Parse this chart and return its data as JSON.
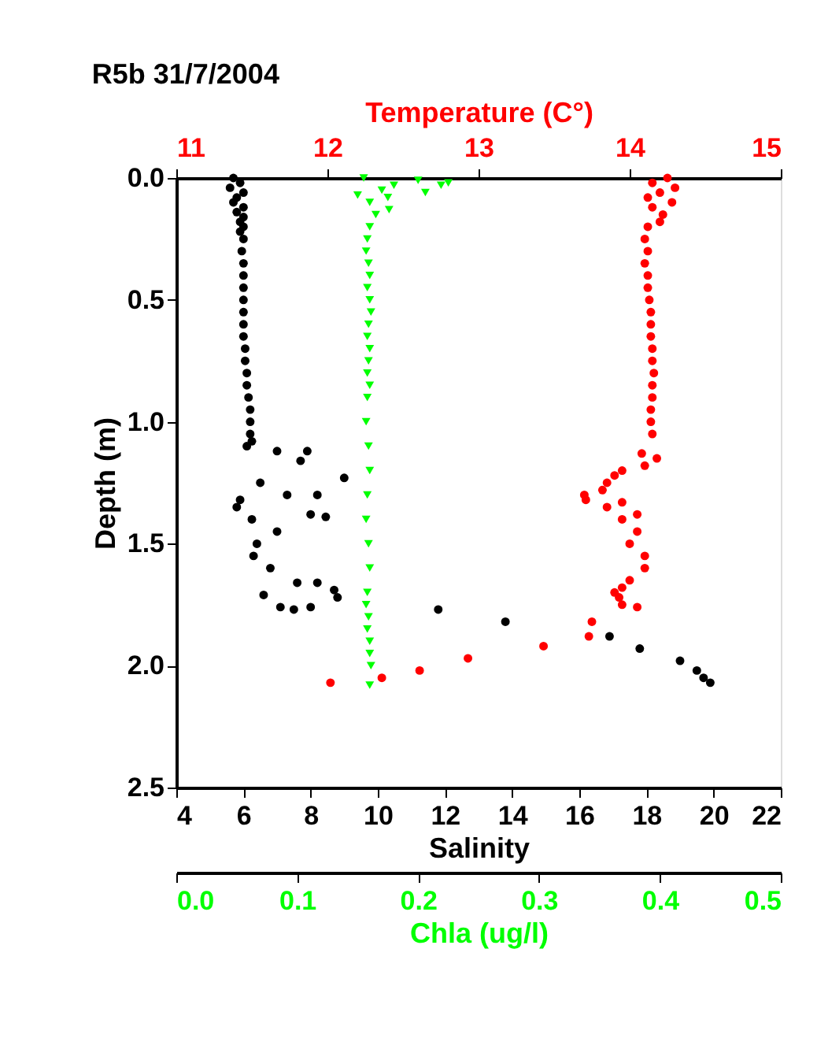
{
  "chart_data": [
    {
      "type": "scatter",
      "title": "R5b 31/7/2004",
      "xlabel": "Salinity",
      "x2label": "Temperature (C°)",
      "ylabel": "Depth (m)",
      "xlim": [
        4,
        22
      ],
      "xticks": [
        4,
        6,
        8,
        10,
        12,
        14,
        16,
        18,
        20,
        22
      ],
      "x2lim": [
        11,
        15
      ],
      "x2ticks": [
        11,
        12,
        13,
        14,
        15
      ],
      "ylim": [
        2.5,
        0
      ],
      "yticks": [
        {
          "value": 0,
          "label": "0.0"
        },
        {
          "value": 0.5,
          "label": "0.5"
        },
        {
          "value": 1,
          "label": "1.0"
        },
        {
          "value": 1.5,
          "label": "1.5"
        },
        {
          "value": 2,
          "label": "2.0"
        },
        {
          "value": 2.5,
          "label": "2.5"
        }
      ],
      "grid": false,
      "series": [
        {
          "marker": "circle",
          "color": "#000000",
          "x": [
            5.7,
            5.9,
            5.6,
            6.0,
            5.8,
            5.7,
            6.0,
            5.8,
            6.0,
            5.9,
            6.0,
            5.9,
            6.0,
            5.95,
            6.0,
            6.0,
            6.0,
            6.0,
            6.0,
            6.0,
            6.0,
            6.05,
            6.05,
            6.1,
            6.1,
            6.15,
            6.2,
            6.2,
            6.2,
            6.25,
            6.1,
            7.0,
            7.9,
            7.7,
            9.0,
            6.5,
            5.9,
            7.3,
            8.2,
            8.45,
            8.0,
            6.25,
            6.4,
            6.8,
            6.6,
            7.6,
            8.2,
            8.7,
            7.1,
            7.5,
            8.0,
            8.8,
            6.3,
            5.8,
            7.0,
            11.8,
            13.8,
            16.9,
            17.8,
            19.0,
            19.5,
            19.7,
            19.9
          ],
          "values": [
            0.0,
            0.02,
            0.04,
            0.06,
            0.08,
            0.1,
            0.12,
            0.14,
            0.16,
            0.18,
            0.2,
            0.22,
            0.25,
            0.3,
            0.35,
            0.4,
            0.45,
            0.5,
            0.55,
            0.6,
            0.65,
            0.7,
            0.75,
            0.8,
            0.85,
            0.9,
            0.95,
            1.0,
            1.05,
            1.08,
            1.1,
            1.12,
            1.12,
            1.16,
            1.23,
            1.25,
            1.32,
            1.3,
            1.3,
            1.39,
            1.38,
            1.4,
            1.5,
            1.6,
            1.71,
            1.66,
            1.66,
            1.69,
            1.76,
            1.77,
            1.76,
            1.72,
            1.55,
            1.35,
            1.45,
            1.77,
            1.82,
            1.88,
            1.93,
            1.98,
            2.02,
            2.05,
            2.07
          ]
        },
        {
          "axis": "x2",
          "marker": "circle",
          "color": "#ff0000",
          "x": [
            14.25,
            14.15,
            14.3,
            14.2,
            14.12,
            14.28,
            14.15,
            14.22,
            14.2,
            14.12,
            14.1,
            14.12,
            14.1,
            14.12,
            14.12,
            14.13,
            14.14,
            14.14,
            14.14,
            14.15,
            14.15,
            14.16,
            14.15,
            14.15,
            14.14,
            14.14,
            14.15,
            14.08,
            14.18,
            14.1,
            13.95,
            13.9,
            13.85,
            13.82,
            13.7,
            13.71,
            13.95,
            13.85,
            14.05,
            13.95,
            14.05,
            14.0,
            14.1,
            14.1,
            14.0,
            13.95,
            13.9,
            13.93,
            13.95,
            14.05,
            13.75,
            13.73,
            13.43,
            12.93,
            12.61,
            12.36,
            12.02
          ],
          "values": [
            0.0,
            0.02,
            0.04,
            0.06,
            0.08,
            0.1,
            0.12,
            0.15,
            0.18,
            0.2,
            0.25,
            0.3,
            0.35,
            0.4,
            0.45,
            0.5,
            0.55,
            0.6,
            0.65,
            0.7,
            0.75,
            0.8,
            0.85,
            0.9,
            0.95,
            1.0,
            1.05,
            1.13,
            1.15,
            1.18,
            1.2,
            1.22,
            1.25,
            1.28,
            1.3,
            1.32,
            1.33,
            1.35,
            1.38,
            1.4,
            1.45,
            1.5,
            1.55,
            1.6,
            1.65,
            1.68,
            1.7,
            1.72,
            1.75,
            1.76,
            1.82,
            1.88,
            1.92,
            1.97,
            2.02,
            2.05,
            2.07
          ]
        }
      ]
    },
    {
      "type": "scatter",
      "xlabel": "Chla (ug/l)",
      "xlim": [
        0,
        0.5
      ],
      "xticks": [
        {
          "value": 0,
          "label": "0.0"
        },
        {
          "value": 0.1,
          "label": "0.1"
        },
        {
          "value": 0.2,
          "label": "0.2"
        },
        {
          "value": 0.3,
          "label": "0.3"
        },
        {
          "value": 0.4,
          "label": "0.4"
        },
        {
          "value": 0.5,
          "label": "0.5"
        }
      ],
      "ylim": [
        2.5,
        0
      ],
      "tick_labels": "x",
      "grid": false,
      "series": [
        {
          "marker": "triangle",
          "color": "#00ff00",
          "x": [
            0.155,
            0.2,
            0.225,
            0.18,
            0.219,
            0.17,
            0.206,
            0.15,
            0.175,
            0.16,
            0.176,
            0.165,
            0.16,
            0.158,
            0.157,
            0.159,
            0.16,
            0.158,
            0.16,
            0.161,
            0.159,
            0.158,
            0.16,
            0.159,
            0.158,
            0.16,
            0.158,
            0.157,
            0.159,
            0.16,
            0.158,
            0.157,
            0.159,
            0.16,
            0.158,
            0.157,
            0.159,
            0.158,
            0.16,
            0.16,
            0.161,
            0.16
          ],
          "values": [
            0.0,
            0.01,
            0.02,
            0.03,
            0.03,
            0.05,
            0.06,
            0.07,
            0.08,
            0.1,
            0.13,
            0.15,
            0.2,
            0.25,
            0.3,
            0.35,
            0.4,
            0.45,
            0.5,
            0.55,
            0.6,
            0.65,
            0.7,
            0.75,
            0.8,
            0.85,
            0.9,
            1.0,
            1.1,
            1.2,
            1.3,
            1.4,
            1.5,
            1.6,
            1.7,
            1.75,
            1.8,
            1.85,
            1.9,
            1.95,
            2.0,
            2.08
          ]
        }
      ]
    }
  ]
}
